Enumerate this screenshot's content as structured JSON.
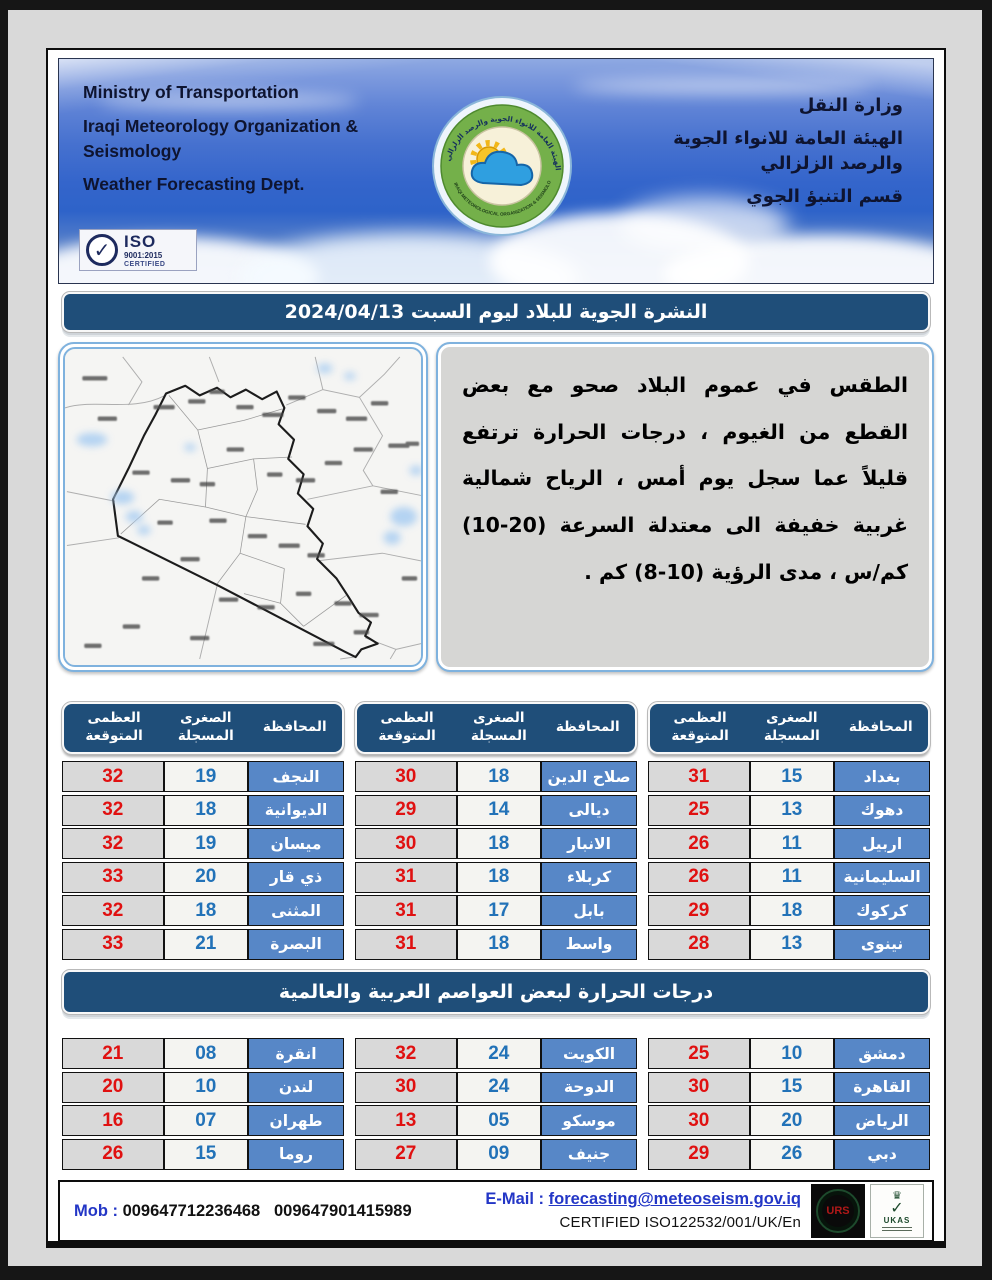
{
  "header": {
    "org_en_line1": "Ministry of Transportation",
    "org_en_line2": "Iraqi Meteorology Organization &",
    "org_en_line3": "Seismology",
    "org_en_line4": "Weather Forecasting Dept.",
    "org_ar_line1": "وزارة النقل",
    "org_ar_line2": "الهيئة العامة للانواء الجوية",
    "org_ar_line3": "والرصد الزلزالي",
    "org_ar_line4": "قسم التنبؤ الجوي",
    "logo_arc_top": "الهيئة العامة للانواء الجوية والرصد الزلزالي",
    "logo_arc_bottom": "IRAQI METEOROLOGICAL ORGANIZATION & SEISMOLOGY",
    "iso_badge": {
      "title": "ISO",
      "standard": "9001:2015",
      "status": "CERTIFIED"
    }
  },
  "date_bar": {
    "title": "النشرة الجوية للبلاد ليوم السبت 2024/04/13"
  },
  "forecast_text": "الطقس في عموم البلاد صحو مع بعض القطع من الغيوم ، درجات الحرارة ترتفع قليلاً عما سجل يوم أمس ، الرياح شمالية غربية خفيفة الى معتدلة السرعة (20-10) كم/س ، مدى الرؤية (10-8) كم .",
  "gov_table": {
    "headers": {
      "city": "المحافظة",
      "min": "الصغرى\nالمسجلة",
      "max": "العظمى\nالمتوقعة"
    },
    "groups": [
      {
        "rows": [
          {
            "city": "النجف",
            "min": "19",
            "max": "32"
          },
          {
            "city": "الديوانية",
            "min": "18",
            "max": "32"
          },
          {
            "city": "ميسان",
            "min": "19",
            "max": "32"
          },
          {
            "city": "ذي قار",
            "min": "20",
            "max": "33"
          },
          {
            "city": "المثنى",
            "min": "18",
            "max": "32"
          },
          {
            "city": "البصرة",
            "min": "21",
            "max": "33"
          }
        ]
      },
      {
        "rows": [
          {
            "city": "صلاح الدين",
            "min": "18",
            "max": "30"
          },
          {
            "city": "ديالى",
            "min": "14",
            "max": "29"
          },
          {
            "city": "الانبار",
            "min": "18",
            "max": "30"
          },
          {
            "city": "كربلاء",
            "min": "18",
            "max": "31"
          },
          {
            "city": "بابل",
            "min": "17",
            "max": "31"
          },
          {
            "city": "واسط",
            "min": "18",
            "max": "31"
          }
        ]
      },
      {
        "rows": [
          {
            "city": "بغداد",
            "min": "15",
            "max": "31"
          },
          {
            "city": "دهوك",
            "min": "13",
            "max": "25"
          },
          {
            "city": "اربيل",
            "min": "11",
            "max": "26"
          },
          {
            "city": "السليمانية",
            "min": "11",
            "max": "26"
          },
          {
            "city": "كركوك",
            "min": "18",
            "max": "29"
          },
          {
            "city": "نينوى",
            "min": "13",
            "max": "28"
          }
        ]
      }
    ]
  },
  "capitals_bar": {
    "title": "درجات الحرارة لبعض العواصم العربية والعالمية"
  },
  "capitals_table": {
    "groups": [
      {
        "rows": [
          {
            "city": "انقرة",
            "min": "08",
            "max": "21"
          },
          {
            "city": "لندن",
            "min": "10",
            "max": "20"
          },
          {
            "city": "طهران",
            "min": "07",
            "max": "16"
          },
          {
            "city": "روما",
            "min": "15",
            "max": "26"
          }
        ]
      },
      {
        "rows": [
          {
            "city": "الكويت",
            "min": "24",
            "max": "32"
          },
          {
            "city": "الدوحة",
            "min": "24",
            "max": "30"
          },
          {
            "city": "موسكو",
            "min": "05",
            "max": "13"
          },
          {
            "city": "جنيف",
            "min": "09",
            "max": "27"
          }
        ]
      },
      {
        "rows": [
          {
            "city": "دمشق",
            "min": "10",
            "max": "25"
          },
          {
            "city": "القاهرة",
            "min": "15",
            "max": "30"
          },
          {
            "city": "الرياض",
            "min": "20",
            "max": "30"
          },
          {
            "city": "دبي",
            "min": "26",
            "max": "29"
          }
        ]
      }
    ]
  },
  "footer": {
    "mob_label": "Mob :",
    "mob_number1": "009647712236468",
    "mob_number2": "009647901415989",
    "email_label": "E-Mail :",
    "email": "forecasting@meteoseism.gov.iq",
    "certified": "CERTIFIED ISO122532/001/UK/En",
    "urs_label": "URS",
    "ukas_label": "UKAS"
  },
  "colors": {
    "navy_bar": "#1f4e79",
    "city_cell_blue": "#5787c7",
    "max_temp_red": "#e01111",
    "min_temp_blue": "#2272b8",
    "panel_border_blue": "#7fb2de",
    "footer_link_blue": "#2336c6"
  }
}
